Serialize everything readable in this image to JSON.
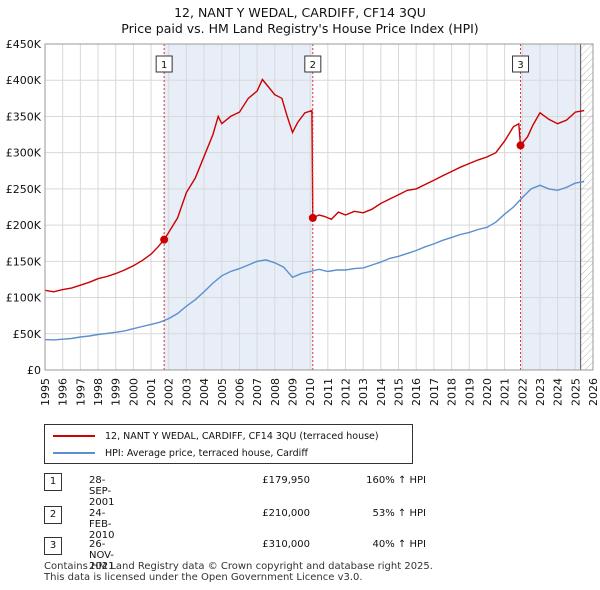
{
  "title_line1": "12, NANT Y WEDAL, CARDIFF, CF14 3QU",
  "title_line2": "Price paid vs. HM Land Registry's House Price Index (HPI)",
  "colors": {
    "price": "#cc0000",
    "hpi": "#5b8fd0",
    "shade": "#e8eef8",
    "grid": "#d9d9d9"
  },
  "chart_data": {
    "type": "line",
    "x_range": [
      1995,
      2026
    ],
    "y_range": [
      0,
      450000
    ],
    "x_ticks": [
      1995,
      1996,
      1997,
      1998,
      1999,
      2000,
      2001,
      2002,
      2003,
      2004,
      2005,
      2006,
      2007,
      2008,
      2009,
      2010,
      2011,
      2012,
      2013,
      2014,
      2015,
      2016,
      2017,
      2018,
      2019,
      2020,
      2021,
      2022,
      2023,
      2024,
      2025,
      2026
    ],
    "y_ticks": [
      {
        "value": 0,
        "label": "£0"
      },
      {
        "value": 50000,
        "label": "£50K"
      },
      {
        "value": 100000,
        "label": "£100K"
      },
      {
        "value": 150000,
        "label": "£150K"
      },
      {
        "value": 200000,
        "label": "£200K"
      },
      {
        "value": 250000,
        "label": "£250K"
      },
      {
        "value": 300000,
        "label": "£300K"
      },
      {
        "value": 350000,
        "label": "£350K"
      },
      {
        "value": 400000,
        "label": "£400K"
      },
      {
        "value": 450000,
        "label": "£450K"
      }
    ],
    "shaded_periods": [
      [
        2001.74,
        2010.15
      ],
      [
        2021.9,
        2025.3
      ]
    ],
    "sale_events": [
      {
        "label": "1",
        "x": 2001.74,
        "y": 179950
      },
      {
        "label": "2",
        "x": 2010.15,
        "y": 210000
      },
      {
        "label": "3",
        "x": 2021.9,
        "y": 310000
      }
    ],
    "series": [
      {
        "name": "12, NANT Y WEDAL, CARDIFF, CF14 3QU (terraced house)",
        "color": "#cc0000",
        "points": [
          [
            1995.0,
            110000
          ],
          [
            1995.5,
            108000
          ],
          [
            1996.0,
            111000
          ],
          [
            1996.5,
            113000
          ],
          [
            1997.0,
            117000
          ],
          [
            1997.5,
            121000
          ],
          [
            1998.0,
            126000
          ],
          [
            1998.5,
            129000
          ],
          [
            1999.0,
            133000
          ],
          [
            1999.5,
            138000
          ],
          [
            2000.0,
            144000
          ],
          [
            2000.5,
            151000
          ],
          [
            2001.0,
            160000
          ],
          [
            2001.4,
            170000
          ],
          [
            2001.74,
            179950
          ],
          [
            2002.0,
            190000
          ],
          [
            2002.5,
            210000
          ],
          [
            2003.0,
            245000
          ],
          [
            2003.5,
            265000
          ],
          [
            2004.0,
            295000
          ],
          [
            2004.5,
            325000
          ],
          [
            2004.8,
            350000
          ],
          [
            2005.0,
            340000
          ],
          [
            2005.5,
            350000
          ],
          [
            2006.0,
            356000
          ],
          [
            2006.5,
            375000
          ],
          [
            2007.0,
            385000
          ],
          [
            2007.3,
            401000
          ],
          [
            2007.6,
            392000
          ],
          [
            2008.0,
            380000
          ],
          [
            2008.4,
            375000
          ],
          [
            2008.7,
            350000
          ],
          [
            2009.0,
            328000
          ],
          [
            2009.3,
            342000
          ],
          [
            2009.7,
            355000
          ],
          [
            2010.1,
            358000
          ],
          [
            2010.15,
            210000
          ],
          [
            2010.5,
            214000
          ],
          [
            2010.8,
            212000
          ],
          [
            2011.2,
            208000
          ],
          [
            2011.6,
            218000
          ],
          [
            2012.0,
            214000
          ],
          [
            2012.5,
            219000
          ],
          [
            2013.0,
            217000
          ],
          [
            2013.5,
            222000
          ],
          [
            2014.0,
            230000
          ],
          [
            2014.5,
            236000
          ],
          [
            2015.0,
            242000
          ],
          [
            2015.5,
            248000
          ],
          [
            2016.0,
            250000
          ],
          [
            2016.5,
            256000
          ],
          [
            2017.0,
            262000
          ],
          [
            2017.5,
            268000
          ],
          [
            2018.0,
            274000
          ],
          [
            2018.5,
            280000
          ],
          [
            2019.0,
            285000
          ],
          [
            2019.5,
            290000
          ],
          [
            2020.0,
            294000
          ],
          [
            2020.5,
            300000
          ],
          [
            2021.0,
            316000
          ],
          [
            2021.5,
            336000
          ],
          [
            2021.8,
            340000
          ],
          [
            2021.9,
            310000
          ],
          [
            2022.3,
            322000
          ],
          [
            2022.6,
            338000
          ],
          [
            2023.0,
            355000
          ],
          [
            2023.5,
            346000
          ],
          [
            2024.0,
            340000
          ],
          [
            2024.5,
            345000
          ],
          [
            2025.0,
            356000
          ],
          [
            2025.5,
            358000
          ]
        ]
      },
      {
        "name": "HPI: Average price, terraced house, Cardiff",
        "color": "#5b8fd0",
        "points": [
          [
            1995.0,
            42000
          ],
          [
            1995.5,
            41500
          ],
          [
            1996.0,
            42500
          ],
          [
            1996.5,
            43500
          ],
          [
            1997.0,
            45500
          ],
          [
            1997.5,
            47000
          ],
          [
            1998.0,
            49000
          ],
          [
            1998.5,
            50500
          ],
          [
            1999.0,
            52000
          ],
          [
            1999.5,
            54000
          ],
          [
            2000.0,
            57000
          ],
          [
            2000.5,
            60000
          ],
          [
            2001.0,
            63000
          ],
          [
            2001.5,
            66000
          ],
          [
            2002.0,
            71000
          ],
          [
            2002.5,
            78000
          ],
          [
            2003.0,
            88000
          ],
          [
            2003.5,
            97000
          ],
          [
            2004.0,
            108000
          ],
          [
            2004.5,
            120000
          ],
          [
            2005.0,
            130000
          ],
          [
            2005.5,
            136000
          ],
          [
            2006.0,
            140000
          ],
          [
            2006.5,
            145000
          ],
          [
            2007.0,
            150000
          ],
          [
            2007.5,
            152000
          ],
          [
            2008.0,
            148000
          ],
          [
            2008.5,
            142000
          ],
          [
            2009.0,
            128000
          ],
          [
            2009.5,
            133000
          ],
          [
            2010.0,
            136000
          ],
          [
            2010.5,
            139000
          ],
          [
            2011.0,
            136000
          ],
          [
            2011.5,
            138000
          ],
          [
            2012.0,
            138000
          ],
          [
            2012.5,
            140000
          ],
          [
            2013.0,
            141000
          ],
          [
            2013.5,
            145000
          ],
          [
            2014.0,
            149000
          ],
          [
            2014.5,
            154000
          ],
          [
            2015.0,
            157000
          ],
          [
            2015.5,
            161000
          ],
          [
            2016.0,
            165000
          ],
          [
            2016.5,
            170000
          ],
          [
            2017.0,
            174000
          ],
          [
            2017.5,
            179000
          ],
          [
            2018.0,
            183000
          ],
          [
            2018.5,
            187000
          ],
          [
            2019.0,
            190000
          ],
          [
            2019.5,
            194000
          ],
          [
            2020.0,
            197000
          ],
          [
            2020.5,
            204000
          ],
          [
            2021.0,
            215000
          ],
          [
            2021.5,
            225000
          ],
          [
            2022.0,
            238000
          ],
          [
            2022.5,
            250000
          ],
          [
            2023.0,
            255000
          ],
          [
            2023.5,
            250000
          ],
          [
            2024.0,
            248000
          ],
          [
            2024.5,
            252000
          ],
          [
            2025.0,
            258000
          ],
          [
            2025.5,
            260000
          ]
        ]
      }
    ]
  },
  "legend": {
    "price_label": "12, NANT Y WEDAL, CARDIFF, CF14 3QU (terraced house)",
    "hpi_label": "HPI: Average price, terraced house, Cardiff"
  },
  "transactions": [
    {
      "num": "1",
      "date": "28-SEP-2001",
      "price": "£179,950",
      "hpi": "160% ↑ HPI"
    },
    {
      "num": "2",
      "date": "24-FEB-2010",
      "price": "£210,000",
      "hpi": "53% ↑ HPI"
    },
    {
      "num": "3",
      "date": "26-NOV-2021",
      "price": "£310,000",
      "hpi": "40% ↑ HPI"
    }
  ],
  "footer": {
    "line1": "Contains HM Land Registry data © Crown copyright and database right 2025.",
    "line2": "This data is licensed under the Open Government Licence v3.0."
  }
}
